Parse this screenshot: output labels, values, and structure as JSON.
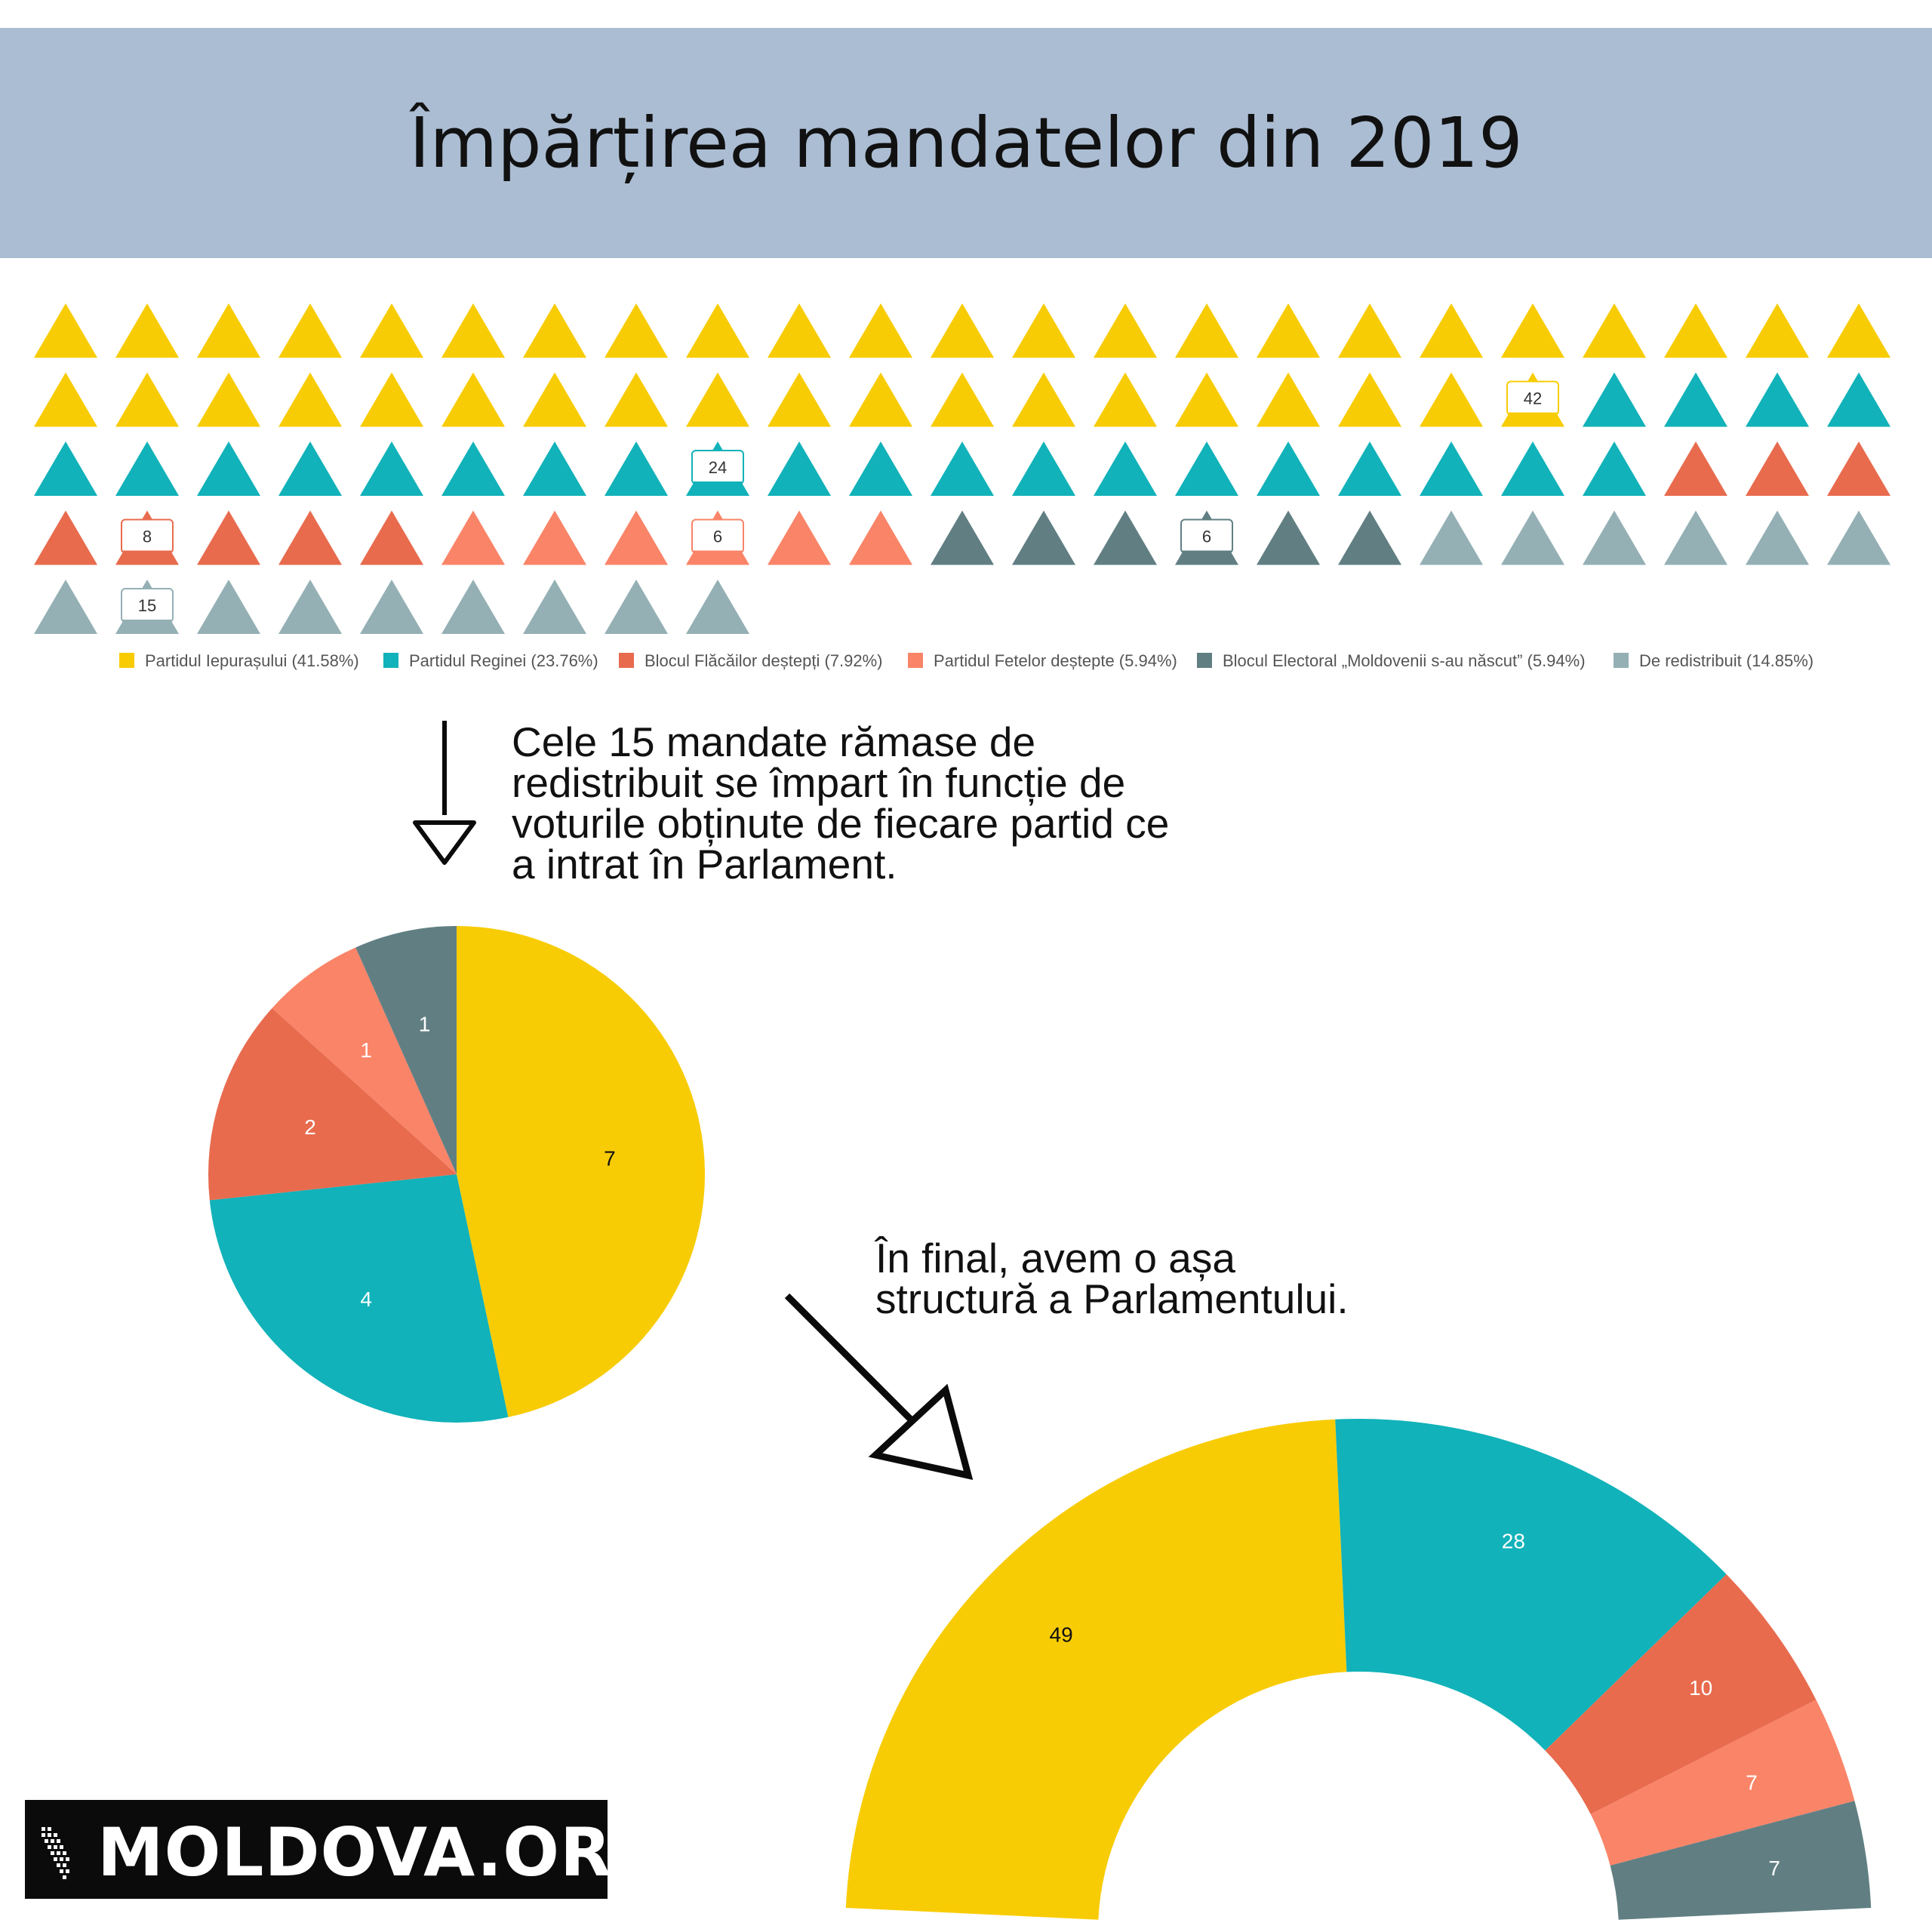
{
  "header": {
    "title": "Împărțirea mandatelor din 2019"
  },
  "colors": {
    "partidul_iepurasului": "#f8cc05",
    "partidul_reginei": "#11b2b9",
    "blocul_flacailor": "#e86b4e",
    "partidul_fetelor": "#fa8468",
    "blocul_electoral": "#617f83",
    "de_redistribuit": "#94b0b5"
  },
  "chart_data": [
    {
      "type": "waffle",
      "series": [
        {
          "name": "Partidul Iepurașului (41.58%)",
          "value": 42,
          "label": "42",
          "color": "#f8cc05"
        },
        {
          "name": "Partidul Reginei (23.76%)",
          "value": 24,
          "label": "24",
          "color": "#11b2b9"
        },
        {
          "name": "Blocul Flăcăilor deștepți (7.92%)",
          "value": 8,
          "label": "8",
          "color": "#e86b4e"
        },
        {
          "name": "Partidul Fetelor deștepte (5.94%)",
          "value": 6,
          "label": "6",
          "color": "#fa8468"
        },
        {
          "name": "Blocul Electoral „Moldovenii s-au născut” (5.94%)",
          "value": 6,
          "label": "6",
          "color": "#617f83"
        },
        {
          "name": "De redistribuit (14.85%)",
          "value": 15,
          "label": "15",
          "color": "#94b0b5"
        }
      ]
    },
    {
      "type": "pie",
      "categories": [
        "Partidul Iepurașului",
        "Partidul Reginei",
        "Blocul Flăcăilor deștepți",
        "Partidul Fetelor deștepte",
        "Blocul Electoral „Moldovenii s-au născut”"
      ],
      "values": [
        7,
        4,
        2,
        1,
        1
      ],
      "labels": [
        "7",
        "4",
        "2",
        "1",
        "1"
      ],
      "colors": [
        "#f8cc05",
        "#11b2b9",
        "#e86b4e",
        "#fa8468",
        "#617f83"
      ]
    },
    {
      "type": "semi-donut",
      "categories": [
        "Partidul Iepurașului",
        "Partidul Reginei",
        "Blocul Flăcăilor deștepți",
        "Partidul Fetelor deștepte",
        "Blocul Electoral „Moldovenii s-au născut”"
      ],
      "values": [
        49,
        28,
        10,
        7,
        7
      ],
      "labels": [
        "49",
        "28",
        "10",
        "7",
        "7"
      ],
      "colors": [
        "#f8cc05",
        "#11b2b9",
        "#e86b4e",
        "#fa8468",
        "#617f83"
      ]
    }
  ],
  "notes": {
    "redistribution": "Cele 15 mandate rămase de redistribuit se împart în funcție de voturile obținute de fiecare partid ce a intrat în Parlament.",
    "final": "În final, avem o așa structură a Parlamentului."
  },
  "logo": {
    "text": "MOLDOVA.ORG"
  }
}
